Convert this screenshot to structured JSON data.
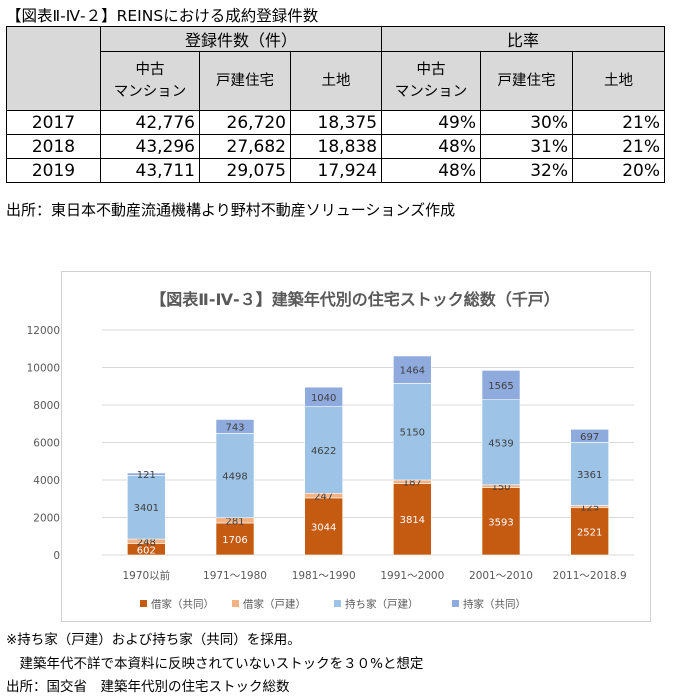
{
  "table": {
    "title": "【図表Ⅱ-Ⅳ-２】REINSにおける成約登録件数",
    "group_headers": [
      "登録件数（件）",
      "比率"
    ],
    "sub_headers": [
      [
        "中古",
        "マンション"
      ],
      [
        "戸建住宅"
      ],
      [
        "土地"
      ],
      [
        "中古",
        "マンション"
      ],
      [
        "戸建住宅"
      ],
      [
        "土地"
      ]
    ],
    "rows": [
      {
        "year": "2017",
        "values": [
          "42,776",
          "26,720",
          "18,375",
          "49%",
          "30%",
          "21%"
        ]
      },
      {
        "year": "2018",
        "values": [
          "43,296",
          "27,682",
          "18,838",
          "48%",
          "31%",
          "21%"
        ]
      },
      {
        "year": "2019",
        "values": [
          "43,711",
          "29,075",
          "17,924",
          "48%",
          "32%",
          "20%"
        ]
      }
    ],
    "source": "出所：東日本不動産流通機構より野村不動産ソリューションズ作成"
  },
  "chart_data": {
    "type": "bar",
    "stacked": true,
    "title": "【図表Ⅱ-Ⅳ-３】建築年代別の住宅ストック総数（千戸）",
    "categories": [
      "1970以前",
      "1971～1980",
      "1981～1990",
      "1991～2000",
      "2001～2010",
      "2011～2018.9"
    ],
    "series": [
      {
        "name": "借家（共同）",
        "color": "#c55a11",
        "label_color": "#ffffff",
        "values": [
          602,
          1706,
          3044,
          3814,
          3593,
          2521
        ]
      },
      {
        "name": "借家（戸建）",
        "color": "#f4b183",
        "label_color": "#404040",
        "values": [
          248,
          281,
          247,
          187,
          150,
          125
        ]
      },
      {
        "name": "持ち家（戸建）",
        "color": "#9dc3e6",
        "label_color": "#404040",
        "values": [
          3401,
          4498,
          4622,
          5150,
          4539,
          3361
        ]
      },
      {
        "name": "持家（共同）",
        "color": "#8faadc",
        "label_color": "#404040",
        "values": [
          121,
          743,
          1040,
          1464,
          1565,
          697
        ]
      }
    ],
    "ylim": [
      0,
      12000
    ],
    "yticks": [
      "0",
      "2000",
      "4000",
      "6000",
      "8000",
      "10000",
      "12000"
    ],
    "grid": true,
    "legend": "bottom"
  },
  "notes": [
    "※持ち家（戸建）および持ち家（共同）を採用。",
    "　建築年代不詳で本資料に反映されていないストックを３０%と想定",
    "出所：国交省　建築年代別の住宅ストック総数"
  ]
}
